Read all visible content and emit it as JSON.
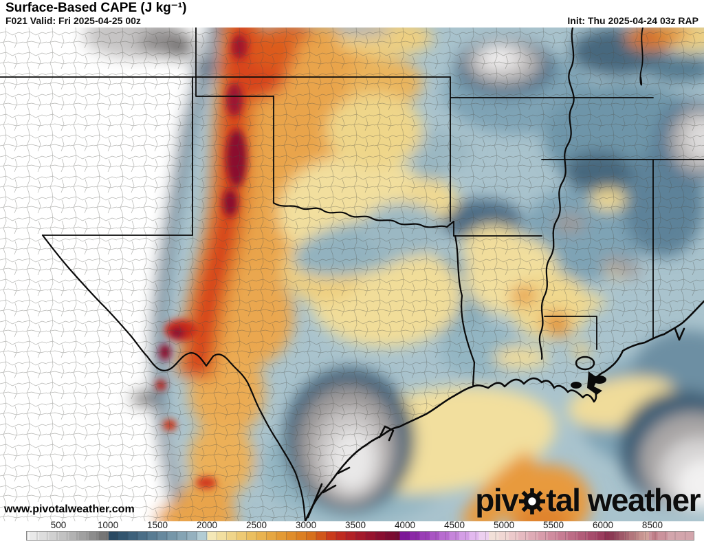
{
  "header": {
    "title": "Surface-Based CAPE (J kg⁻¹)",
    "forecast_valid": "F021 Valid: Fri 2025-04-25 00z",
    "init": "Init: Thu 2025-04-24 03z RAP"
  },
  "map": {
    "watermark": "www.pivotalweather.com",
    "logo": {
      "part1": "piv",
      "part2": "tal weather",
      "gear_icon": "gear-icon"
    },
    "palette": {
      "base": "#a9c3cd",
      "navy": "#3d5c74",
      "blue_dark": "#4a6b84",
      "blue_mid": "#7ea3b5",
      "blue_soft": "#93b5c2",
      "cream": "#f2df9e",
      "cream_deep": "#eecf80",
      "orange": "#e9a44c",
      "orange_deep": "#e07b28",
      "red": "#d63d1c",
      "red_dark": "#b3221f",
      "crimson": "#8b0f2f",
      "gray_mid": "#b5b2b2",
      "gray_dark": "#5f5c5c",
      "line_black": "#0a0a0a",
      "county": "#4c4d46"
    }
  },
  "chart_data": {
    "type": "heatmap",
    "title": "Surface-Based CAPE (J kg⁻¹)",
    "units": "J kg⁻¹",
    "model": "RAP",
    "forecast_hour": "F021",
    "valid_time": "Fri 2025-04-25 00z",
    "init_time": "Thu 2025-04-24 03z",
    "legend_position": "bottom",
    "colorbar_ticks": [
      {
        "value": 500,
        "label": "500"
      },
      {
        "value": 1000,
        "label": "1000"
      },
      {
        "value": 1500,
        "label": "1500"
      },
      {
        "value": 2000,
        "label": "2000"
      },
      {
        "value": 2500,
        "label": "2500"
      },
      {
        "value": 3000,
        "label": "3000"
      },
      {
        "value": 3500,
        "label": "3500"
      },
      {
        "value": 4000,
        "label": "4000"
      },
      {
        "value": 4500,
        "label": "4500"
      },
      {
        "value": 5000,
        "label": "5000"
      },
      {
        "value": 5500,
        "label": "5500"
      },
      {
        "value": 6000,
        "label": "6000"
      },
      {
        "value": 8500,
        "label": "8500"
      }
    ],
    "colorbar_stops": [
      [
        0,
        "#ffffff"
      ],
      [
        100,
        "#f4f4f4"
      ],
      [
        200,
        "#e9e9e9"
      ],
      [
        300,
        "#dddddd"
      ],
      [
        400,
        "#d0d0d0"
      ],
      [
        500,
        "#c2c2c2"
      ],
      [
        600,
        "#b2b2b2"
      ],
      [
        700,
        "#a0a0a0"
      ],
      [
        800,
        "#8c8c8c"
      ],
      [
        900,
        "#767676"
      ],
      [
        1000,
        "#2a4a63"
      ],
      [
        1100,
        "#32556f"
      ],
      [
        1200,
        "#3d617b"
      ],
      [
        1300,
        "#4a6e87"
      ],
      [
        1400,
        "#587c93"
      ],
      [
        1500,
        "#67899e"
      ],
      [
        1600,
        "#7697a9"
      ],
      [
        1700,
        "#85a4b4"
      ],
      [
        1800,
        "#95b1bf"
      ],
      [
        1900,
        "#b2ccd4"
      ],
      [
        2000,
        "#f4e8b7"
      ],
      [
        2100,
        "#f2dfa0"
      ],
      [
        2200,
        "#f0d58a"
      ],
      [
        2300,
        "#eeca74"
      ],
      [
        2400,
        "#ebbf60"
      ],
      [
        2500,
        "#e9b350"
      ],
      [
        2600,
        "#e6a742"
      ],
      [
        2700,
        "#e39a35"
      ],
      [
        2800,
        "#e08d2b"
      ],
      [
        2900,
        "#dc7f22"
      ],
      [
        3000,
        "#d7701c"
      ],
      [
        3100,
        "#d1561a"
      ],
      [
        3200,
        "#ca3b1c"
      ],
      [
        3300,
        "#bf2b21"
      ],
      [
        3400,
        "#b22127"
      ],
      [
        3500,
        "#a4192b"
      ],
      [
        3600,
        "#97132e"
      ],
      [
        3700,
        "#890e30"
      ],
      [
        3800,
        "#7c0b31"
      ],
      [
        3900,
        "#730a31"
      ],
      [
        3950,
        "#7d1699"
      ],
      [
        4050,
        "#8b27a7"
      ],
      [
        4150,
        "#9a3db6"
      ],
      [
        4250,
        "#a954c3"
      ],
      [
        4350,
        "#b86cd0"
      ],
      [
        4450,
        "#c685db"
      ],
      [
        4550,
        "#d49ee6"
      ],
      [
        4650,
        "#e3b9ef"
      ],
      [
        4750,
        "#edd0f0"
      ],
      [
        4850,
        "#f2e0d8"
      ],
      [
        4950,
        "#f0d7d3"
      ],
      [
        5050,
        "#ecc9cb"
      ],
      [
        5150,
        "#e6bac1"
      ],
      [
        5250,
        "#dfabb6"
      ],
      [
        5350,
        "#d89cab"
      ],
      [
        5450,
        "#d08c9f"
      ],
      [
        5550,
        "#c77c93"
      ],
      [
        5650,
        "#bd6c86"
      ],
      [
        5750,
        "#b25c79"
      ],
      [
        5850,
        "#a74c6c"
      ],
      [
        5950,
        "#9b3d5e"
      ],
      [
        6100,
        "#8e3252"
      ],
      [
        6350,
        "#8c3a54"
      ],
      [
        6600,
        "#95495e"
      ],
      [
        6850,
        "#9f5868"
      ],
      [
        7100,
        "#a96772"
      ],
      [
        7350,
        "#b3767c"
      ],
      [
        7600,
        "#bd8586"
      ],
      [
        7850,
        "#c79490"
      ],
      [
        8100,
        "#d1a29a"
      ],
      [
        8350,
        "#c9919b"
      ],
      [
        8500,
        "#c27f8a"
      ],
      [
        8800,
        "#cb929c"
      ],
      [
        9300,
        "#d3a5ac"
      ],
      [
        10000,
        "#d3a5ac"
      ]
    ],
    "scale_note": "discrete cells ≈100 J/kg up to 6000, ≈250 J/kg above 6000"
  }
}
